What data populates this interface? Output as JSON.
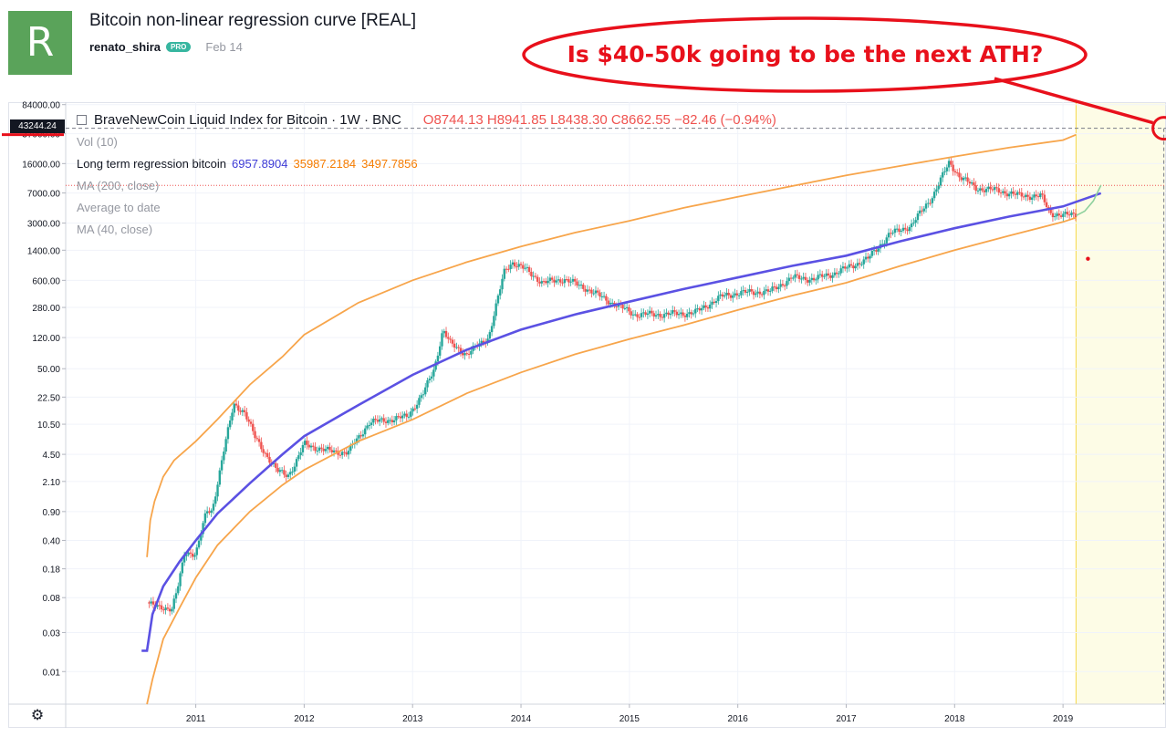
{
  "header": {
    "avatar_letter": "R",
    "title": "Bitcoin non-linear regression curve [REAL]",
    "author": "renato_shira",
    "badge": "PRO",
    "date": "Feb 14"
  },
  "callout": {
    "text": "Is $40-50k going to be the next ATH?",
    "color": "#e8101b"
  },
  "legend": {
    "symbol": "BraveNewCoin Liquid Index for Bitcoin · 1W · BNC",
    "ohlc": {
      "open": "O8744.13",
      "high": "H8941.85",
      "low": "L8438.30",
      "close": "C8662.55",
      "change": "−82.46 (−0.94%)"
    },
    "vol": "Vol (10)",
    "regression": {
      "label": "Long term regression bitcoin",
      "v1": "6957.8904",
      "v2": "35987.2184",
      "v3": "3497.7856"
    },
    "ma200": "MA (200, close)",
    "avg_to_date": "Average to date",
    "ma40": "MA (40, close)"
  },
  "price_badge": "43244.24",
  "gear_icon": "gear-icon",
  "colors": {
    "up": "#26a69a",
    "down": "#ef5350",
    "regression": "#5b51e3",
    "band": "#f7a54b",
    "forecast_bg": "#fdfce6",
    "forecast_line": "#f5d74a",
    "annotation": "#e8101b"
  },
  "chart_data": {
    "type": "line",
    "title": "BraveNewCoin Liquid Index for Bitcoin · 1W · BNC",
    "y_scale": "log",
    "ylim": [
      0.004,
      90000
    ],
    "xlim": [
      2009.8,
      2019.95
    ],
    "y_ticks": [
      "84000.00",
      "37000.00",
      "16000.00",
      "7000.00",
      "3000.00",
      "1400.00",
      "600.00",
      "280.00",
      "120.00",
      "50.00",
      "22.50",
      "10.50",
      "4.50",
      "2.10",
      "0.90",
      "0.40",
      "0.18",
      "0.08",
      "0.03",
      "0.01"
    ],
    "x_ticks": [
      "2011",
      "2012",
      "2013",
      "2014",
      "2015",
      "2016",
      "2017",
      "2018",
      "2019"
    ],
    "series": [
      {
        "name": "BraveNewCoin Liquid Index for Bitcoin",
        "x": [
          2010.55,
          2010.65,
          2010.78,
          2010.83,
          2010.9,
          2011.0,
          2011.1,
          2011.15,
          2011.25,
          2011.35,
          2011.45,
          2011.55,
          2011.65,
          2011.75,
          2011.85,
          2011.92,
          2012.0,
          2012.2,
          2012.4,
          2012.6,
          2012.8,
          2012.95,
          2013.1,
          2013.2,
          2013.28,
          2013.35,
          2013.5,
          2013.7,
          2013.85,
          2013.92,
          2014.05,
          2014.2,
          2014.4,
          2014.6,
          2014.8,
          2015.05,
          2015.3,
          2015.6,
          2015.85,
          2016.0,
          2016.3,
          2016.5,
          2016.7,
          2016.9,
          2017.05,
          2017.2,
          2017.4,
          2017.6,
          2017.8,
          2017.95,
          2018.05,
          2018.2,
          2018.4,
          2018.6,
          2018.8,
          2018.88,
          2019.0,
          2019.15,
          2019.25,
          2019.33
        ],
        "y": [
          0.07,
          0.06,
          0.06,
          0.1,
          0.28,
          0.28,
          0.9,
          0.9,
          4.5,
          18,
          15,
          7,
          4.5,
          2.8,
          2.5,
          3.5,
          6,
          5,
          4.7,
          11,
          12,
          13,
          25,
          50,
          150,
          100,
          75,
          120,
          800,
          1000,
          800,
          560,
          620,
          480,
          340,
          230,
          230,
          240,
          380,
          420,
          440,
          650,
          620,
          740,
          900,
          1100,
          2200,
          2800,
          6500,
          16500,
          11000,
          8000,
          7500,
          6500,
          6400,
          4000,
          3700,
          3900,
          5300,
          8600
        ]
      },
      {
        "name": "Long term regression bitcoin",
        "x": [
          2010.5,
          2010.55,
          2010.6,
          2010.7,
          2010.85,
          2011.0,
          2011.2,
          2011.5,
          2011.8,
          2012.0,
          2012.5,
          2013.0,
          2013.5,
          2014.0,
          2014.5,
          2015.0,
          2015.5,
          2016.0,
          2016.5,
          2017.0,
          2017.5,
          2018.0,
          2018.5,
          2019.0,
          2019.35
        ],
        "y": [
          0.018,
          0.018,
          0.05,
          0.11,
          0.22,
          0.4,
          0.85,
          2.0,
          4.5,
          7.5,
          18,
          42,
          85,
          150,
          230,
          330,
          470,
          650,
          900,
          1200,
          1800,
          2600,
          3600,
          4800,
          6958
        ]
      },
      {
        "name": "Upper band",
        "x": [
          2010.55,
          2010.58,
          2010.62,
          2010.7,
          2010.8,
          2011.0,
          2011.2,
          2011.5,
          2011.8,
          2012.0,
          2012.5,
          2013.0,
          2013.5,
          2014.0,
          2014.5,
          2015.0,
          2015.5,
          2016.0,
          2016.5,
          2017.0,
          2017.5,
          2018.0,
          2018.5,
          2019.0,
          2019.12
        ],
        "y": [
          0.25,
          0.7,
          1.2,
          2.4,
          3.8,
          6.5,
          12,
          32,
          70,
          130,
          320,
          600,
          1000,
          1550,
          2300,
          3200,
          4600,
          6300,
          8500,
          11500,
          15000,
          19500,
          25000,
          31000,
          35987
        ]
      },
      {
        "name": "Lower band",
        "x": [
          2010.55,
          2010.6,
          2010.7,
          2010.85,
          2011.0,
          2011.2,
          2011.5,
          2011.8,
          2012.0,
          2012.5,
          2013.0,
          2013.5,
          2014.0,
          2014.5,
          2015.0,
          2015.5,
          2016.0,
          2016.5,
          2017.0,
          2017.5,
          2018.0,
          2018.5,
          2019.0,
          2019.12
        ],
        "y": [
          0.004,
          0.008,
          0.025,
          0.06,
          0.14,
          0.35,
          0.9,
          1.9,
          2.9,
          6.5,
          12,
          25,
          45,
          75,
          115,
          170,
          260,
          390,
          560,
          900,
          1400,
          2100,
          3100,
          3498
        ]
      },
      {
        "name": "Projection",
        "x": [
          2019.12,
          2019.2,
          2019.28,
          2019.35
        ],
        "y": [
          3700,
          4200,
          5600,
          8700
        ]
      }
    ],
    "forecast_region": {
      "x_start": 2019.12,
      "marker_x": 2019.93,
      "marker_y": 43244.24
    },
    "extra_marks": [
      {
        "x": 2019.23,
        "y": 1100
      }
    ],
    "hlines": [
      {
        "y": 8662.55,
        "label": "close"
      }
    ],
    "grid": true
  }
}
